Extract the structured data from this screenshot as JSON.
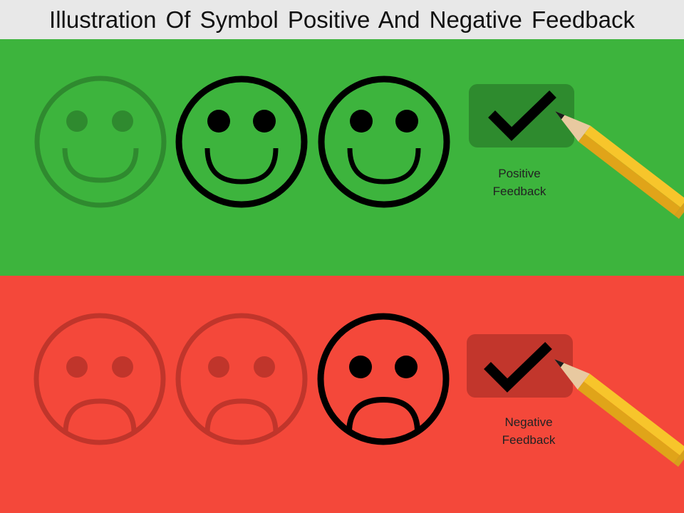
{
  "title": "Illustration Of Symbol Positive And Negative Feedback",
  "positive_panel": {
    "background_color": "#3db43d",
    "faded_color": "#2f8a2f",
    "label_line1": "Positive",
    "label_line2": "Feedback",
    "faces": [
      "smiley-faded",
      "smiley-outlined",
      "smiley-outlined"
    ],
    "checkmark_box_color": "#2e8b2e"
  },
  "negative_panel": {
    "background_color": "#f4483a",
    "faded_color": "#c0352b",
    "label_line1": "Negative",
    "label_line2": "Feedback",
    "faces": [
      "sad-faded",
      "sad-faded",
      "sad-outlined"
    ],
    "checkmark_box_color": "#c2362c"
  },
  "icons": {
    "check": "check-icon",
    "pencil": "pencil-icon",
    "smiley": "smiley-face-icon",
    "sad": "sad-face-icon"
  }
}
